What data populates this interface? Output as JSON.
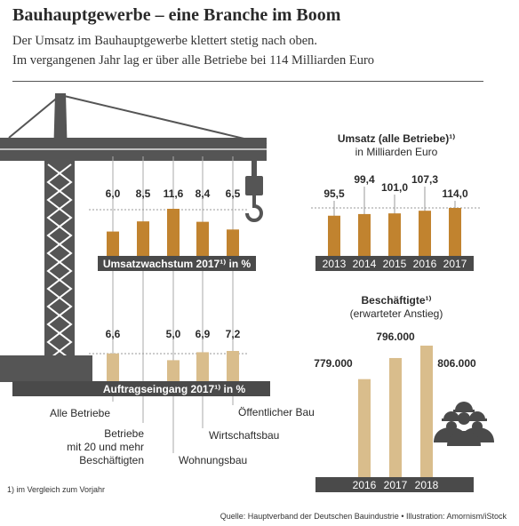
{
  "header": {
    "title": "Bauhauptgewerbe – eine Branche im Boom",
    "subtitle_line1": "Der Umsatz im Bauhauptgewerbe klettert stetig nach oben.",
    "subtitle_line2": "Im vergangenen Jahr lag er über alle Betriebe bei 114 Milliarden Euro"
  },
  "footnote": "1) im Vergleich zum Vorjahr",
  "source": "Quelle: Hauptverband der Deutschen Bauindustrie • Illustration: Amornism/iStock",
  "colors": {
    "bar_dark": "#c1832f",
    "bar_light": "#d9bd8c",
    "band": "#4a4a4a",
    "crane": "#555555"
  },
  "chart_data": [
    {
      "type": "bar",
      "title": "Umsatzwachstum 2017¹⁾ in %",
      "categories": [
        "Alle Betriebe",
        "Betriebe mit 20 und mehr Beschäftigten",
        "Wohnungsbau",
        "Wirtschaftsbau",
        "Öffentlicher Bau"
      ],
      "values": [
        6.0,
        8.5,
        11.6,
        8.4,
        6.5
      ],
      "value_labels": [
        "6,0",
        "8,5",
        "11,6",
        "8,4",
        "6,5"
      ]
    },
    {
      "type": "bar",
      "title": "Auftragseingang 2017¹⁾ in %",
      "categories": [
        "Alle Betriebe",
        "Betriebe mit 20 und mehr Beschäftigten",
        "Wohnungsbau",
        "Wirtschaftsbau",
        "Öffentlicher Bau"
      ],
      "values": [
        6.6,
        null,
        5.0,
        6.9,
        7.2
      ],
      "value_labels": [
        "6,6",
        "",
        "5,0",
        "6,9",
        "7,2"
      ]
    },
    {
      "type": "bar",
      "title": "Umsatz (alle Betriebe)¹⁾",
      "subtitle": "in Milliarden Euro",
      "categories": [
        "2013",
        "2014",
        "2015",
        "2016",
        "2017"
      ],
      "values": [
        95.5,
        99.4,
        101.0,
        107.3,
        114.0
      ],
      "value_labels": [
        "95,5",
        "99,4",
        "101,0",
        "107,3",
        "114,0"
      ]
    },
    {
      "type": "bar",
      "title": "Beschäftigte¹⁾",
      "subtitle": "(erwarteter Anstieg)",
      "categories": [
        "2016",
        "2017",
        "2018"
      ],
      "values": [
        779000,
        796000,
        806000
      ],
      "value_labels": [
        "779.000",
        "796.000",
        "806.000"
      ]
    }
  ],
  "category_labels": {
    "c1": "Alle Betriebe",
    "c2_line1": "Betriebe",
    "c2_line2": "mit 20 und mehr",
    "c2_line3": "Beschäftigten",
    "c3": "Wohnungsbau",
    "c4": "Wirtschaftsbau",
    "c5": "Öffentlicher Bau"
  },
  "icons": {
    "workers": "construction-workers-icon",
    "crane": "crane-illustration"
  }
}
